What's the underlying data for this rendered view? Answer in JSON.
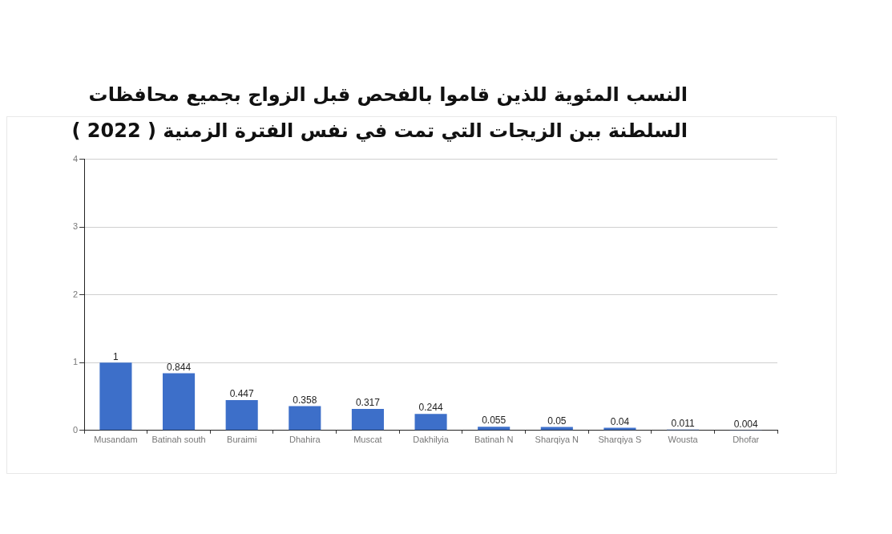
{
  "chart_data": {
    "type": "bar",
    "title": "النسب المئوية للذين قاموا بالفحص قبل الزواج بجميع محافظات السلطنة  بين الزيجات التي تمت في نفس الفترة الزمنية ( 2022 )",
    "categories": [
      "Musandam",
      "Batinah south",
      "Buraimi",
      "Dhahira",
      "Muscat",
      "Dakhilyia",
      "Batinah N",
      "Sharqiya N",
      "Sharqiya S",
      "Wousta",
      "Dhofar"
    ],
    "values": [
      1,
      0.844,
      0.447,
      0.358,
      0.317,
      0.244,
      0.055,
      0.05,
      0.04,
      0.011,
      0.004
    ],
    "color": "#3d6fc9",
    "ylim": [
      0,
      4
    ],
    "yticks": [
      0,
      1,
      2,
      3,
      4
    ],
    "grid": "y",
    "legend": false,
    "data_labels": true
  }
}
